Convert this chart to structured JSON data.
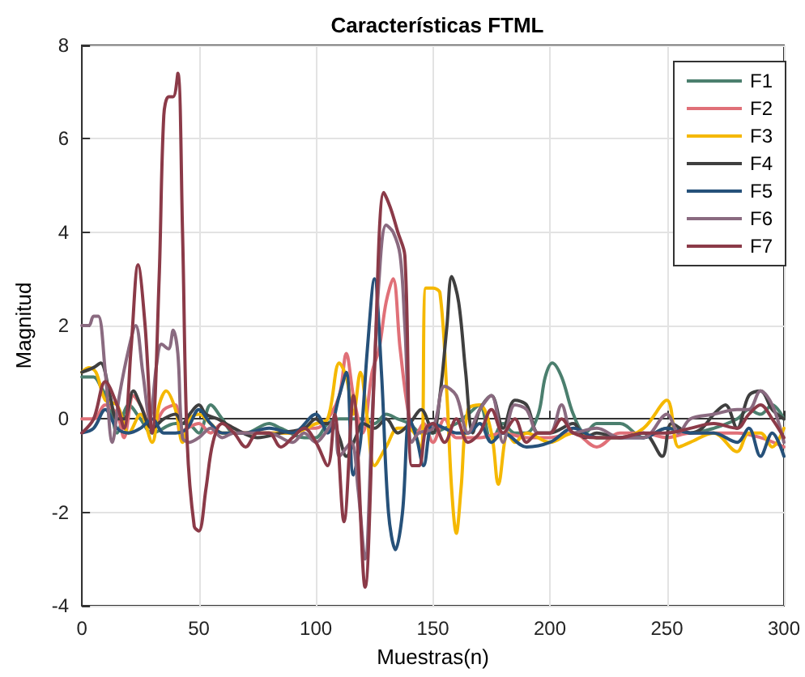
{
  "chart_data": {
    "type": "line",
    "title": "Características FTML",
    "xlabel": "Muestras(n)",
    "ylabel": "Magnitud",
    "xlim": [
      0,
      300
    ],
    "xticks": [
      0,
      50,
      100,
      150,
      200,
      250,
      300
    ],
    "ylim": [
      -4,
      8
    ],
    "yticks": [
      -4,
      -2,
      0,
      2,
      4,
      6,
      8
    ],
    "grid": true,
    "legend": "top right",
    "marker": "none",
    "line_style": "solid",
    "series": [
      {
        "name": "F1",
        "color": "#4b7f6e",
        "x": [
          0,
          5,
          8,
          12,
          15,
          20,
          25,
          30,
          40,
          45,
          50,
          55,
          60,
          65,
          70,
          80,
          85,
          95,
          100,
          105,
          110,
          120,
          125,
          130,
          135,
          140,
          145,
          150,
          155,
          160,
          165,
          170,
          175,
          180,
          185,
          190,
          195,
          198,
          201,
          205,
          210,
          215,
          220,
          230,
          240,
          250,
          260,
          270,
          280,
          285,
          290,
          295,
          300
        ],
        "values": [
          0.9,
          0.9,
          0.7,
          0.3,
          -0.3,
          0.3,
          0,
          -0.3,
          -0.1,
          -0.1,
          -0.3,
          0.3,
          0,
          -0.3,
          -0.3,
          -0.1,
          -0.2,
          -0.4,
          -0.4,
          -0.1,
          0,
          0,
          -0.1,
          0.1,
          0,
          -0.1,
          -0.3,
          -0.3,
          -0.2,
          -0.1,
          0.1,
          0.3,
          -0.5,
          -0.1,
          -0.3,
          -0.3,
          0.1,
          0.9,
          1.2,
          0.9,
          0.1,
          -0.3,
          -0.1,
          -0.1,
          -0.4,
          -0.2,
          -0.3,
          -0.2,
          0,
          0.2,
          0.1,
          0.3,
          0
        ]
      },
      {
        "name": "F2",
        "color": "#e07078",
        "x": [
          0,
          5,
          10,
          15,
          18,
          22,
          25,
          30,
          35,
          40,
          42,
          45,
          50,
          55,
          60,
          70,
          80,
          90,
          95,
          100,
          105,
          110,
          113,
          116,
          120,
          124,
          127,
          130,
          133,
          136,
          140,
          143,
          146,
          150,
          155,
          160,
          170,
          180,
          190,
          200,
          210,
          220,
          230,
          240,
          250,
          260,
          270,
          280,
          290,
          300
        ],
        "values": [
          0,
          0,
          0.3,
          0.1,
          -0.4,
          0.5,
          0.3,
          -0.2,
          0.2,
          0.3,
          -0.3,
          -0.2,
          -0.1,
          -0.3,
          -0.1,
          -0.3,
          -0.3,
          -0.3,
          -0.2,
          -0.2,
          0,
          0.5,
          1.4,
          0.5,
          -0.3,
          1,
          1.5,
          2.5,
          3,
          1.5,
          0,
          -0.3,
          -0.1,
          -0.5,
          0,
          -0.4,
          -0.4,
          -0.3,
          -0.4,
          -0.4,
          -0.3,
          -0.6,
          -0.3,
          -0.3,
          -0.4,
          -0.3,
          -0.3,
          -0.3,
          -0.4,
          -0.6
        ]
      },
      {
        "name": "F3",
        "color": "#f5b800",
        "x": [
          0,
          3,
          6,
          10,
          15,
          20,
          25,
          30,
          33,
          36,
          40,
          43,
          46,
          50,
          55,
          60,
          70,
          80,
          90,
          100,
          105,
          110,
          113,
          116,
          119,
          122,
          125,
          130,
          135,
          138,
          142,
          145,
          147,
          150,
          153,
          156,
          158,
          160,
          162,
          165,
          170,
          175,
          178,
          182,
          185,
          190,
          200,
          210,
          220,
          230,
          240,
          250,
          255,
          260,
          270,
          280,
          285,
          290,
          295,
          300
        ],
        "values": [
          1,
          1.1,
          1,
          0.4,
          0.3,
          -0.3,
          0.1,
          -0.5,
          0.3,
          0.6,
          0.2,
          -0.5,
          0,
          0.1,
          -0.1,
          -0.3,
          -0.3,
          -0.3,
          -0.3,
          -0.1,
          0,
          1.2,
          0.9,
          0.1,
          1,
          0,
          -1,
          -0.6,
          -0.2,
          -0.2,
          -0.3,
          -0.7,
          2.8,
          2.8,
          2.7,
          0.5,
          -1.5,
          -2.45,
          -1.5,
          0.2,
          0.3,
          -0.3,
          -1.4,
          -0.3,
          -0.5,
          -0.3,
          -0.5,
          -0.3,
          -0.4,
          -0.4,
          -0.2,
          0.4,
          -0.6,
          -0.5,
          -0.3,
          -0.7,
          -0.3,
          -0.3,
          -0.6,
          -0.2
        ]
      },
      {
        "name": "F4",
        "color": "#3f3f3f",
        "x": [
          0,
          5,
          8,
          12,
          15,
          18,
          22,
          25,
          30,
          35,
          40,
          43,
          46,
          50,
          53,
          58,
          65,
          75,
          85,
          95,
          100,
          103,
          107,
          110,
          113,
          117,
          120,
          125,
          130,
          135,
          140,
          145,
          150,
          153,
          156,
          158,
          161,
          164,
          167,
          170,
          175,
          180,
          185,
          190,
          195,
          200,
          210,
          215,
          220,
          230,
          240,
          248,
          252,
          260,
          265,
          270,
          275,
          280,
          285,
          290,
          295,
          300
        ],
        "values": [
          1,
          1.1,
          1.2,
          0.5,
          0,
          0,
          0.6,
          0.3,
          -0.2,
          0,
          0.1,
          -0.1,
          0.1,
          0.3,
          0.1,
          0,
          -0.2,
          -0.4,
          -0.3,
          -0.2,
          0,
          -0.1,
          -0.1,
          -0.4,
          -0.8,
          -0.4,
          -0.1,
          -0.2,
          0,
          -0.3,
          -0.1,
          0.2,
          -0.3,
          0.5,
          2,
          3.05,
          2.5,
          1,
          -0.3,
          0.2,
          0.5,
          -0.2,
          0.4,
          0.3,
          -0.3,
          -0.3,
          -0.1,
          -0.4,
          -0.3,
          -0.4,
          -0.3,
          -0.8,
          -0.1,
          -0.3,
          -0.2,
          0.1,
          0.3,
          -0.2,
          0.5,
          0.6,
          0.2,
          0
        ]
      },
      {
        "name": "F5",
        "color": "#26517a",
        "x": [
          0,
          5,
          10,
          15,
          20,
          25,
          30,
          35,
          40,
          45,
          50,
          55,
          60,
          70,
          80,
          90,
          100,
          105,
          110,
          113,
          116,
          119,
          122,
          125,
          128,
          131,
          134,
          137,
          140,
          143,
          146,
          150,
          155,
          160,
          165,
          170,
          175,
          180,
          190,
          200,
          210,
          220,
          230,
          240,
          250,
          260,
          270,
          280,
          285,
          290,
          295,
          300
        ],
        "values": [
          -0.3,
          -0.2,
          0.2,
          -0.2,
          -0.3,
          -0.2,
          0,
          -0.3,
          -0.3,
          -0.2,
          0.2,
          -0.1,
          -0.3,
          -0.3,
          -0.2,
          -0.3,
          0.1,
          -0.3,
          0.5,
          1,
          -1.2,
          -0.5,
          1.5,
          3,
          1,
          -2,
          -2.8,
          -2,
          0,
          -0.4,
          -1,
          -0.1,
          -0.2,
          -0.3,
          -0.3,
          -0.1,
          -0.5,
          -0.3,
          -0.6,
          -0.5,
          -0.2,
          -0.4,
          -0.4,
          -0.4,
          -0.2,
          -0.3,
          -0.3,
          -0.5,
          -0.2,
          -0.8,
          -0.3,
          -0.8
        ]
      },
      {
        "name": "F6",
        "color": "#8a6a80",
        "x": [
          0,
          3,
          5,
          7,
          10,
          13,
          16,
          20,
          23,
          26,
          29,
          32,
          34,
          37,
          39,
          41,
          43,
          46,
          50,
          55,
          60,
          65,
          70,
          80,
          90,
          95,
          100,
          104,
          108,
          110,
          115,
          118,
          121,
          124,
          127,
          130,
          133,
          136,
          138,
          141,
          144,
          150,
          155,
          160,
          165,
          170,
          175,
          180,
          185,
          190,
          195,
          200,
          205,
          210,
          220,
          230,
          240,
          250,
          255,
          260,
          270,
          280,
          285,
          290,
          295,
          300
        ],
        "values": [
          2,
          2,
          2.2,
          2.2,
          1,
          -0.5,
          0.5,
          1.5,
          2,
          1,
          0,
          1.2,
          1.6,
          1.5,
          1.9,
          1.4,
          -0.4,
          -0.5,
          -0.4,
          -0.2,
          -0.4,
          -0.3,
          -0.3,
          -0.3,
          -0.5,
          -0.3,
          -0.5,
          -0.3,
          0,
          -0.8,
          -0.5,
          -1.5,
          -3,
          0,
          3,
          4.15,
          4,
          3.5,
          2,
          -0.5,
          -0.3,
          -0.2,
          0.7,
          0.5,
          -0.3,
          0.2,
          0.5,
          -0.5,
          0.3,
          0.2,
          -0.3,
          -0.3,
          0.3,
          -0.3,
          -0.2,
          -0.4,
          -0.4,
          0.1,
          -0.3,
          0,
          0.1,
          0.2,
          0.2,
          0.6,
          0.3,
          -0.5
        ]
      },
      {
        "name": "F7",
        "color": "#8b3a48",
        "x": [
          0,
          5,
          10,
          15,
          18,
          21,
          24,
          27,
          30,
          33,
          35,
          37,
          39,
          41,
          43,
          45,
          48,
          50,
          53,
          56,
          60,
          65,
          70,
          75,
          80,
          85,
          90,
          95,
          100,
          105,
          108,
          112,
          116,
          121,
          125,
          129,
          132,
          135,
          138,
          141,
          144,
          147,
          150,
          155,
          160,
          165,
          170,
          175,
          180,
          185,
          190,
          195,
          200,
          205,
          210,
          220,
          230,
          240,
          250,
          260,
          270,
          280,
          285,
          290,
          295,
          300
        ],
        "values": [
          -0.3,
          0,
          0.8,
          0.3,
          -0.2,
          1.5,
          3.3,
          2,
          -0.3,
          3,
          6.5,
          6.9,
          6.9,
          7.4,
          4,
          -0.5,
          -2.3,
          -2.4,
          -1.5,
          -0.5,
          -0.1,
          -0.3,
          -0.6,
          -0.3,
          -0.3,
          -0.6,
          -0.4,
          -0.2,
          -0.5,
          -1,
          0.1,
          -2.2,
          0.5,
          -3.6,
          1,
          4.85,
          4.5,
          4,
          3.5,
          -1,
          -1,
          -0.2,
          -0.1,
          -0.5,
          0,
          -0.5,
          -0.3,
          0.2,
          -0.3,
          0,
          -0.5,
          -0.3,
          -0.3,
          0,
          -0.3,
          -0.4,
          -0.4,
          -0.3,
          -0.3,
          -0.2,
          -0.1,
          -0.2,
          0.1,
          0.3,
          0,
          -0.4
        ]
      }
    ]
  }
}
